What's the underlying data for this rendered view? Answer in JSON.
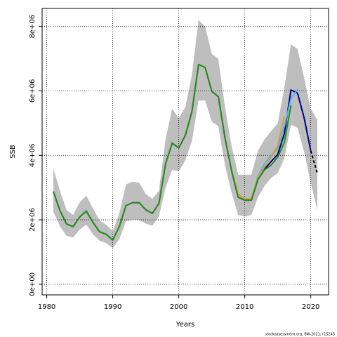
{
  "chart_data": {
    "type": "line",
    "xlabel": "Years",
    "ylabel": "SSB",
    "note": "stockassessment.org, BW-2021, r15245",
    "x": [
      1981,
      1982,
      1983,
      1984,
      1985,
      1986,
      1987,
      1988,
      1989,
      1990,
      1991,
      1992,
      1993,
      1994,
      1995,
      1996,
      1997,
      1998,
      1999,
      2000,
      2001,
      2002,
      2003,
      2004,
      2005,
      2006,
      2007,
      2008,
      2009,
      2010,
      2011,
      2012,
      2013,
      2014,
      2015,
      2016,
      2017,
      2018,
      2019,
      2020,
      2021
    ],
    "band": {
      "color": "#bebebe",
      "upper": [
        3600000,
        2900000,
        2300000,
        2150000,
        2550000,
        2750000,
        2350000,
        1980000,
        1850000,
        1650000,
        2200000,
        3100000,
        3180000,
        3150000,
        2800000,
        2650000,
        2900000,
        4500000,
        5450000,
        5150000,
        5500000,
        6500000,
        8200000,
        8000000,
        7150000,
        7000000,
        5500000,
        4300000,
        3400000,
        3400000,
        3400000,
        4150000,
        4500000,
        4750000,
        5000000,
        6100000,
        7450000,
        7300000,
        6400000,
        5450000,
        5100000
      ],
      "lower": [
        2250000,
        1800000,
        1500000,
        1450000,
        1700000,
        1850000,
        1550000,
        1350000,
        1280000,
        1120000,
        1400000,
        1950000,
        2000000,
        2000000,
        1880000,
        1820000,
        2100000,
        3000000,
        3550000,
        3500000,
        3850000,
        4450000,
        5700000,
        5700000,
        5050000,
        4900000,
        3700000,
        2850000,
        2150000,
        2100000,
        2150000,
        2700000,
        3050000,
        3300000,
        3450000,
        3900000,
        4950000,
        4850000,
        4100000,
        3150000,
        2300000
      ]
    },
    "series": [
      {
        "color": "#00008b",
        "values": [
          2880000,
          2290000,
          1870000,
          1790000,
          2090000,
          2270000,
          1920000,
          1630000,
          1550000,
          1370000,
          1790000,
          2440000,
          2530000,
          2530000,
          2310000,
          2200000,
          2510000,
          3730000,
          4380000,
          4230000,
          4620000,
          5360000,
          6820000,
          6730000,
          5990000,
          5820000,
          4550000,
          3530000,
          2700000,
          2610000,
          2610000,
          3250000,
          3570000,
          3810000,
          4030000,
          4680000,
          6030000,
          5930000,
          5160000,
          4140000,
          null
        ]
      },
      {
        "color": "#000000",
        "dashed": true,
        "values": [
          null,
          null,
          null,
          null,
          null,
          null,
          null,
          null,
          null,
          null,
          null,
          null,
          null,
          null,
          null,
          null,
          null,
          null,
          null,
          null,
          null,
          null,
          null,
          null,
          null,
          null,
          null,
          null,
          null,
          null,
          null,
          null,
          null,
          null,
          null,
          null,
          null,
          null,
          null,
          4140000,
          3440000
        ]
      },
      {
        "color": "#56b4e9",
        "values": [
          2880000,
          2290000,
          1870000,
          1790000,
          2090000,
          2270000,
          1920000,
          1630000,
          1550000,
          1370000,
          1790000,
          2440000,
          2530000,
          2530000,
          2310000,
          2200000,
          2510000,
          3730000,
          4380000,
          4230000,
          4620000,
          5360000,
          6820000,
          6730000,
          5990000,
          5820000,
          4550000,
          3530000,
          2700000,
          2610000,
          2610000,
          3350000,
          3750000,
          4000000,
          4200000,
          4900000,
          5750000,
          6050000,
          null,
          null,
          null
        ]
      },
      {
        "color": "#d8a030",
        "values": [
          2880000,
          2290000,
          1870000,
          1790000,
          2090000,
          2270000,
          1920000,
          1630000,
          1550000,
          1370000,
          1790000,
          2440000,
          2530000,
          2530000,
          2310000,
          2200000,
          2510000,
          3730000,
          4380000,
          4230000,
          4620000,
          5360000,
          6820000,
          6730000,
          5990000,
          5820000,
          4550000,
          3530000,
          2800000,
          2650000,
          2650000,
          3300000,
          3650000,
          3950000,
          4300000,
          5200000,
          null,
          null,
          null,
          null,
          null
        ]
      },
      {
        "color": "#228b22",
        "values": [
          2880000,
          2290000,
          1870000,
          1790000,
          2090000,
          2270000,
          1920000,
          1630000,
          1550000,
          1370000,
          1790000,
          2440000,
          2530000,
          2530000,
          2310000,
          2200000,
          2510000,
          3730000,
          4380000,
          4230000,
          4620000,
          5360000,
          6820000,
          6730000,
          5990000,
          5820000,
          4550000,
          3530000,
          2700000,
          2610000,
          2610000,
          3250000,
          3550000,
          3700000,
          3950000,
          4400000,
          5550000,
          null,
          null,
          null,
          null
        ]
      }
    ],
    "xlim": [
      1979.3,
      2022.7
    ],
    "ylim": [
      -330000,
      8560000
    ],
    "xticks": [
      1980,
      1990,
      2000,
      2010,
      2020
    ],
    "yticks": [
      {
        "value": 0,
        "label": "0e+00"
      },
      {
        "value": 2000000,
        "label": "2e+06"
      },
      {
        "value": 4000000,
        "label": "4e+06"
      },
      {
        "value": 6000000,
        "label": "6e+06"
      },
      {
        "value": 8000000,
        "label": "8e+06"
      }
    ],
    "grid": true
  }
}
